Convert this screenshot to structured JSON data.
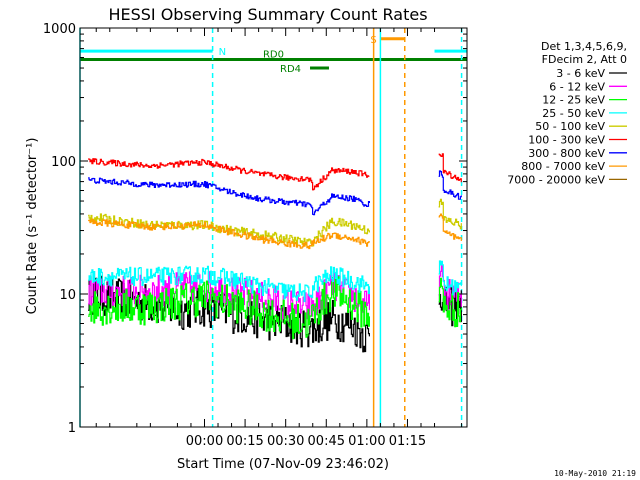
{
  "chart_data": {
    "type": "line",
    "title": "HESSI Observing Summary Count Rates",
    "xlabel": "Start Time (07-Nov-09 23:46:02)",
    "ylabel": "Count Rate (s⁻¹ detector⁻¹)",
    "ylog": true,
    "ylim": [
      1,
      1000
    ],
    "xlim_min": [
      -46,
      97
    ],
    "x_ticks_min": [
      0,
      15,
      30,
      45,
      60,
      75
    ],
    "x_tick_labels": [
      "00:00",
      "00:15",
      "00:30",
      "00:45",
      "01:00",
      "01:15"
    ],
    "y_ticks": [
      1,
      10,
      100,
      1000
    ],
    "y_tick_labels": [
      "1",
      "10",
      "100",
      "1000"
    ],
    "legend_header": [
      "Det 1,3,4,5,6,9,",
      "FDecim 2, Att 0"
    ],
    "legend_position": "right",
    "series": [
      {
        "name": "3 - 6 keV",
        "color": "#000000",
        "noise": 0.35,
        "points": [
          [
            -43,
            10
          ],
          [
            -20,
            8.5
          ],
          [
            -10,
            7.5
          ],
          [
            0,
            8
          ],
          [
            10,
            7.2
          ],
          [
            20,
            6.5
          ],
          [
            30,
            6
          ],
          [
            39,
            5.5
          ],
          [
            40,
            5.5
          ],
          [
            47,
            6.5
          ],
          [
            55,
            5.8
          ],
          [
            60,
            4.8
          ],
          [
            61,
            4.5
          ],
          [
            87,
            8
          ],
          [
            95,
            8
          ]
        ]
      },
      {
        "name": "6 - 12 keV",
        "color": "#ff00ff",
        "noise": 0.28,
        "points": [
          [
            -43,
            10.5
          ],
          [
            -20,
            10.5
          ],
          [
            0,
            11.5
          ],
          [
            10,
            10.5
          ],
          [
            20,
            9.5
          ],
          [
            30,
            8.5
          ],
          [
            39,
            7.8
          ],
          [
            40,
            8
          ],
          [
            47,
            11.5
          ],
          [
            55,
            9.5
          ],
          [
            60,
            8
          ],
          [
            61,
            8.2
          ],
          [
            87,
            10
          ],
          [
            95,
            9.5
          ]
        ]
      },
      {
        "name": "12 - 25 keV",
        "color": "#00ff00",
        "noise": 0.32,
        "points": [
          [
            -43,
            8
          ],
          [
            -20,
            8
          ],
          [
            0,
            9.5
          ],
          [
            10,
            8.5
          ],
          [
            20,
            7.5
          ],
          [
            30,
            6.5
          ],
          [
            39,
            6
          ],
          [
            40,
            7
          ],
          [
            47,
            10.5
          ],
          [
            55,
            8.5
          ],
          [
            60,
            7
          ],
          [
            61,
            7.2
          ],
          [
            87,
            8
          ],
          [
            95,
            7.5
          ]
        ]
      },
      {
        "name": "25 - 50 keV",
        "color": "#00ffff",
        "noise": 0.16,
        "points": [
          [
            -43,
            13.5
          ],
          [
            -20,
            13.5
          ],
          [
            0,
            14
          ],
          [
            10,
            13
          ],
          [
            20,
            11.5
          ],
          [
            30,
            10.5
          ],
          [
            39,
            10
          ],
          [
            40,
            11.5
          ],
          [
            47,
            14
          ],
          [
            55,
            12.5
          ],
          [
            60,
            11.5
          ],
          [
            61,
            11.8
          ],
          [
            87,
            12
          ],
          [
            95,
            11
          ]
        ]
      },
      {
        "name": "50 - 100 keV",
        "color": "#cccc00",
        "noise": 0.08,
        "points": [
          [
            -43,
            38
          ],
          [
            -20,
            33
          ],
          [
            0,
            33
          ],
          [
            10,
            30
          ],
          [
            20,
            28
          ],
          [
            30,
            26
          ],
          [
            39,
            24
          ],
          [
            40,
            25
          ],
          [
            47,
            35
          ],
          [
            55,
            33
          ],
          [
            60,
            30
          ],
          [
            61,
            31
          ],
          [
            87,
            37
          ],
          [
            95,
            33
          ]
        ]
      },
      {
        "name": "100 - 300 keV",
        "color": "#ff0000",
        "noise": 0.05,
        "points": [
          [
            -43,
            100
          ],
          [
            -20,
            92
          ],
          [
            0,
            98
          ],
          [
            10,
            88
          ],
          [
            20,
            80
          ],
          [
            30,
            75
          ],
          [
            39,
            73
          ],
          [
            40,
            62
          ],
          [
            47,
            85
          ],
          [
            55,
            83
          ],
          [
            60,
            78
          ],
          [
            61,
            80
          ],
          [
            87,
            85
          ],
          [
            95,
            72
          ]
        ]
      },
      {
        "name": "300 - 800 keV",
        "color": "#0000ff",
        "noise": 0.05,
        "points": [
          [
            -43,
            72
          ],
          [
            -20,
            66
          ],
          [
            0,
            67
          ],
          [
            10,
            58
          ],
          [
            20,
            52
          ],
          [
            30,
            49
          ],
          [
            39,
            47
          ],
          [
            40,
            40
          ],
          [
            47,
            54
          ],
          [
            55,
            52
          ],
          [
            60,
            47
          ],
          [
            61,
            48
          ],
          [
            87,
            62
          ],
          [
            95,
            53
          ]
        ]
      },
      {
        "name": "800 - 7000 keV",
        "color": "#ff9900",
        "noise": 0.06,
        "points": [
          [
            -43,
            35
          ],
          [
            -20,
            32
          ],
          [
            0,
            33
          ],
          [
            10,
            29
          ],
          [
            20,
            26
          ],
          [
            30,
            24
          ],
          [
            39,
            23
          ],
          [
            40,
            24
          ],
          [
            47,
            28
          ],
          [
            55,
            26
          ],
          [
            60,
            24
          ],
          [
            61,
            25
          ],
          [
            87,
            30
          ],
          [
            95,
            25
          ]
        ]
      },
      {
        "name": "7000 - 20000 keV",
        "color": "#996600",
        "noise": 0.0,
        "points": []
      }
    ],
    "flags": [
      {
        "label": "N",
        "color": "#00ffff",
        "segments": [
          [
            -46,
            3
          ],
          [
            85,
            97
          ]
        ],
        "level": 670
      },
      {
        "label": "RD0",
        "color": "#008000",
        "segments": [
          [
            -46,
            97
          ]
        ],
        "level": 580
      },
      {
        "label": "RD4",
        "color": "#008000",
        "segments": [
          [
            39,
            46
          ]
        ],
        "level": 500
      },
      {
        "label": "S",
        "color": "#ff9900",
        "segments": [
          [
            65,
            74
          ]
        ],
        "level": 830
      }
    ],
    "vlines": [
      {
        "x": -46,
        "color": "#00ffff",
        "style": "solid"
      },
      {
        "x": 3,
        "color": "#00ffff",
        "style": "dashed"
      },
      {
        "x": 62.5,
        "color": "#ff9900",
        "style": "solid"
      },
      {
        "x": 65,
        "color": "#00ffff",
        "style": "solid"
      },
      {
        "x": 74,
        "color": "#ff9900",
        "style": "dashed"
      },
      {
        "x": 95,
        "color": "#00ffff",
        "style": "dashed"
      }
    ]
  },
  "legend_title_lines": [
    "Det 1,3,4,5,6,9,",
    "FDecim 2, Att 0"
  ],
  "footer_stamp": "10-May-2010 21:19"
}
